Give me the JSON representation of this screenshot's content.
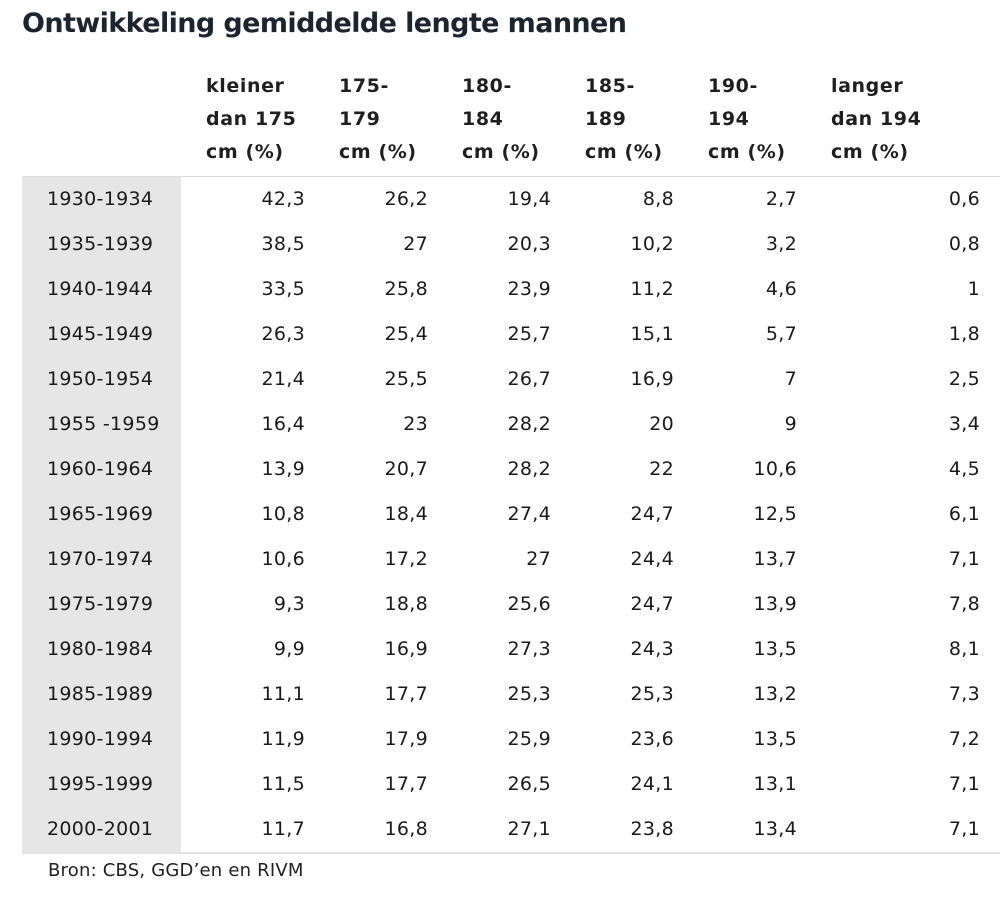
{
  "chart_data": {
    "type": "table",
    "title": "Ontwikkeling gemiddelde lengte mannen",
    "columns": [
      "",
      [
        "kleiner",
        "dan 175",
        "cm (%)"
      ],
      [
        "175-",
        "179",
        "cm (%)"
      ],
      [
        "180-",
        "184",
        "cm (%)"
      ],
      [
        "185-",
        "189",
        "cm (%)"
      ],
      [
        "190-",
        "194",
        "cm (%)"
      ],
      [
        "langer",
        "dan 194",
        "cm (%)"
      ]
    ],
    "rows": [
      [
        "1930-1934",
        "42,3",
        "26,2",
        "19,4",
        "8,8",
        "2,7",
        "0,6"
      ],
      [
        "1935-1939",
        "38,5",
        "27",
        "20,3",
        "10,2",
        "3,2",
        "0,8"
      ],
      [
        "1940-1944",
        "33,5",
        "25,8",
        "23,9",
        "11,2",
        "4,6",
        "1"
      ],
      [
        "1945-1949",
        "26,3",
        "25,4",
        "25,7",
        "15,1",
        "5,7",
        "1,8"
      ],
      [
        "1950-1954",
        "21,4",
        "25,5",
        "26,7",
        "16,9",
        "7",
        "2,5"
      ],
      [
        "1955 -1959",
        "16,4",
        "23",
        "28,2",
        "20",
        "9",
        "3,4"
      ],
      [
        "1960-1964",
        "13,9",
        "20,7",
        "28,2",
        "22",
        "10,6",
        "4,5"
      ],
      [
        "1965-1969",
        "10,8",
        "18,4",
        "27,4",
        "24,7",
        "12,5",
        "6,1"
      ],
      [
        "1970-1974",
        "10,6",
        "17,2",
        "27",
        "24,4",
        "13,7",
        "7,1"
      ],
      [
        "1975-1979",
        "9,3",
        "18,8",
        "25,6",
        "24,7",
        "13,9",
        "7,8"
      ],
      [
        "1980-1984",
        "9,9",
        "16,9",
        "27,3",
        "24,3",
        "13,5",
        "8,1"
      ],
      [
        "1985-1989",
        "11,1",
        "17,7",
        "25,3",
        "25,3",
        "13,2",
        "7,3"
      ],
      [
        "1990-1994",
        "11,9",
        "17,9",
        "25,9",
        "23,6",
        "13,5",
        "7,2"
      ],
      [
        "1995-1999",
        "11,5",
        "17,7",
        "26,5",
        "24,1",
        "13,1",
        "7,1"
      ],
      [
        "2000-2001",
        "11,7",
        "16,8",
        "27,1",
        "23,8",
        "13,4",
        "7,1"
      ]
    ],
    "source": "Bron: CBS, GGD’en en RIVM"
  }
}
